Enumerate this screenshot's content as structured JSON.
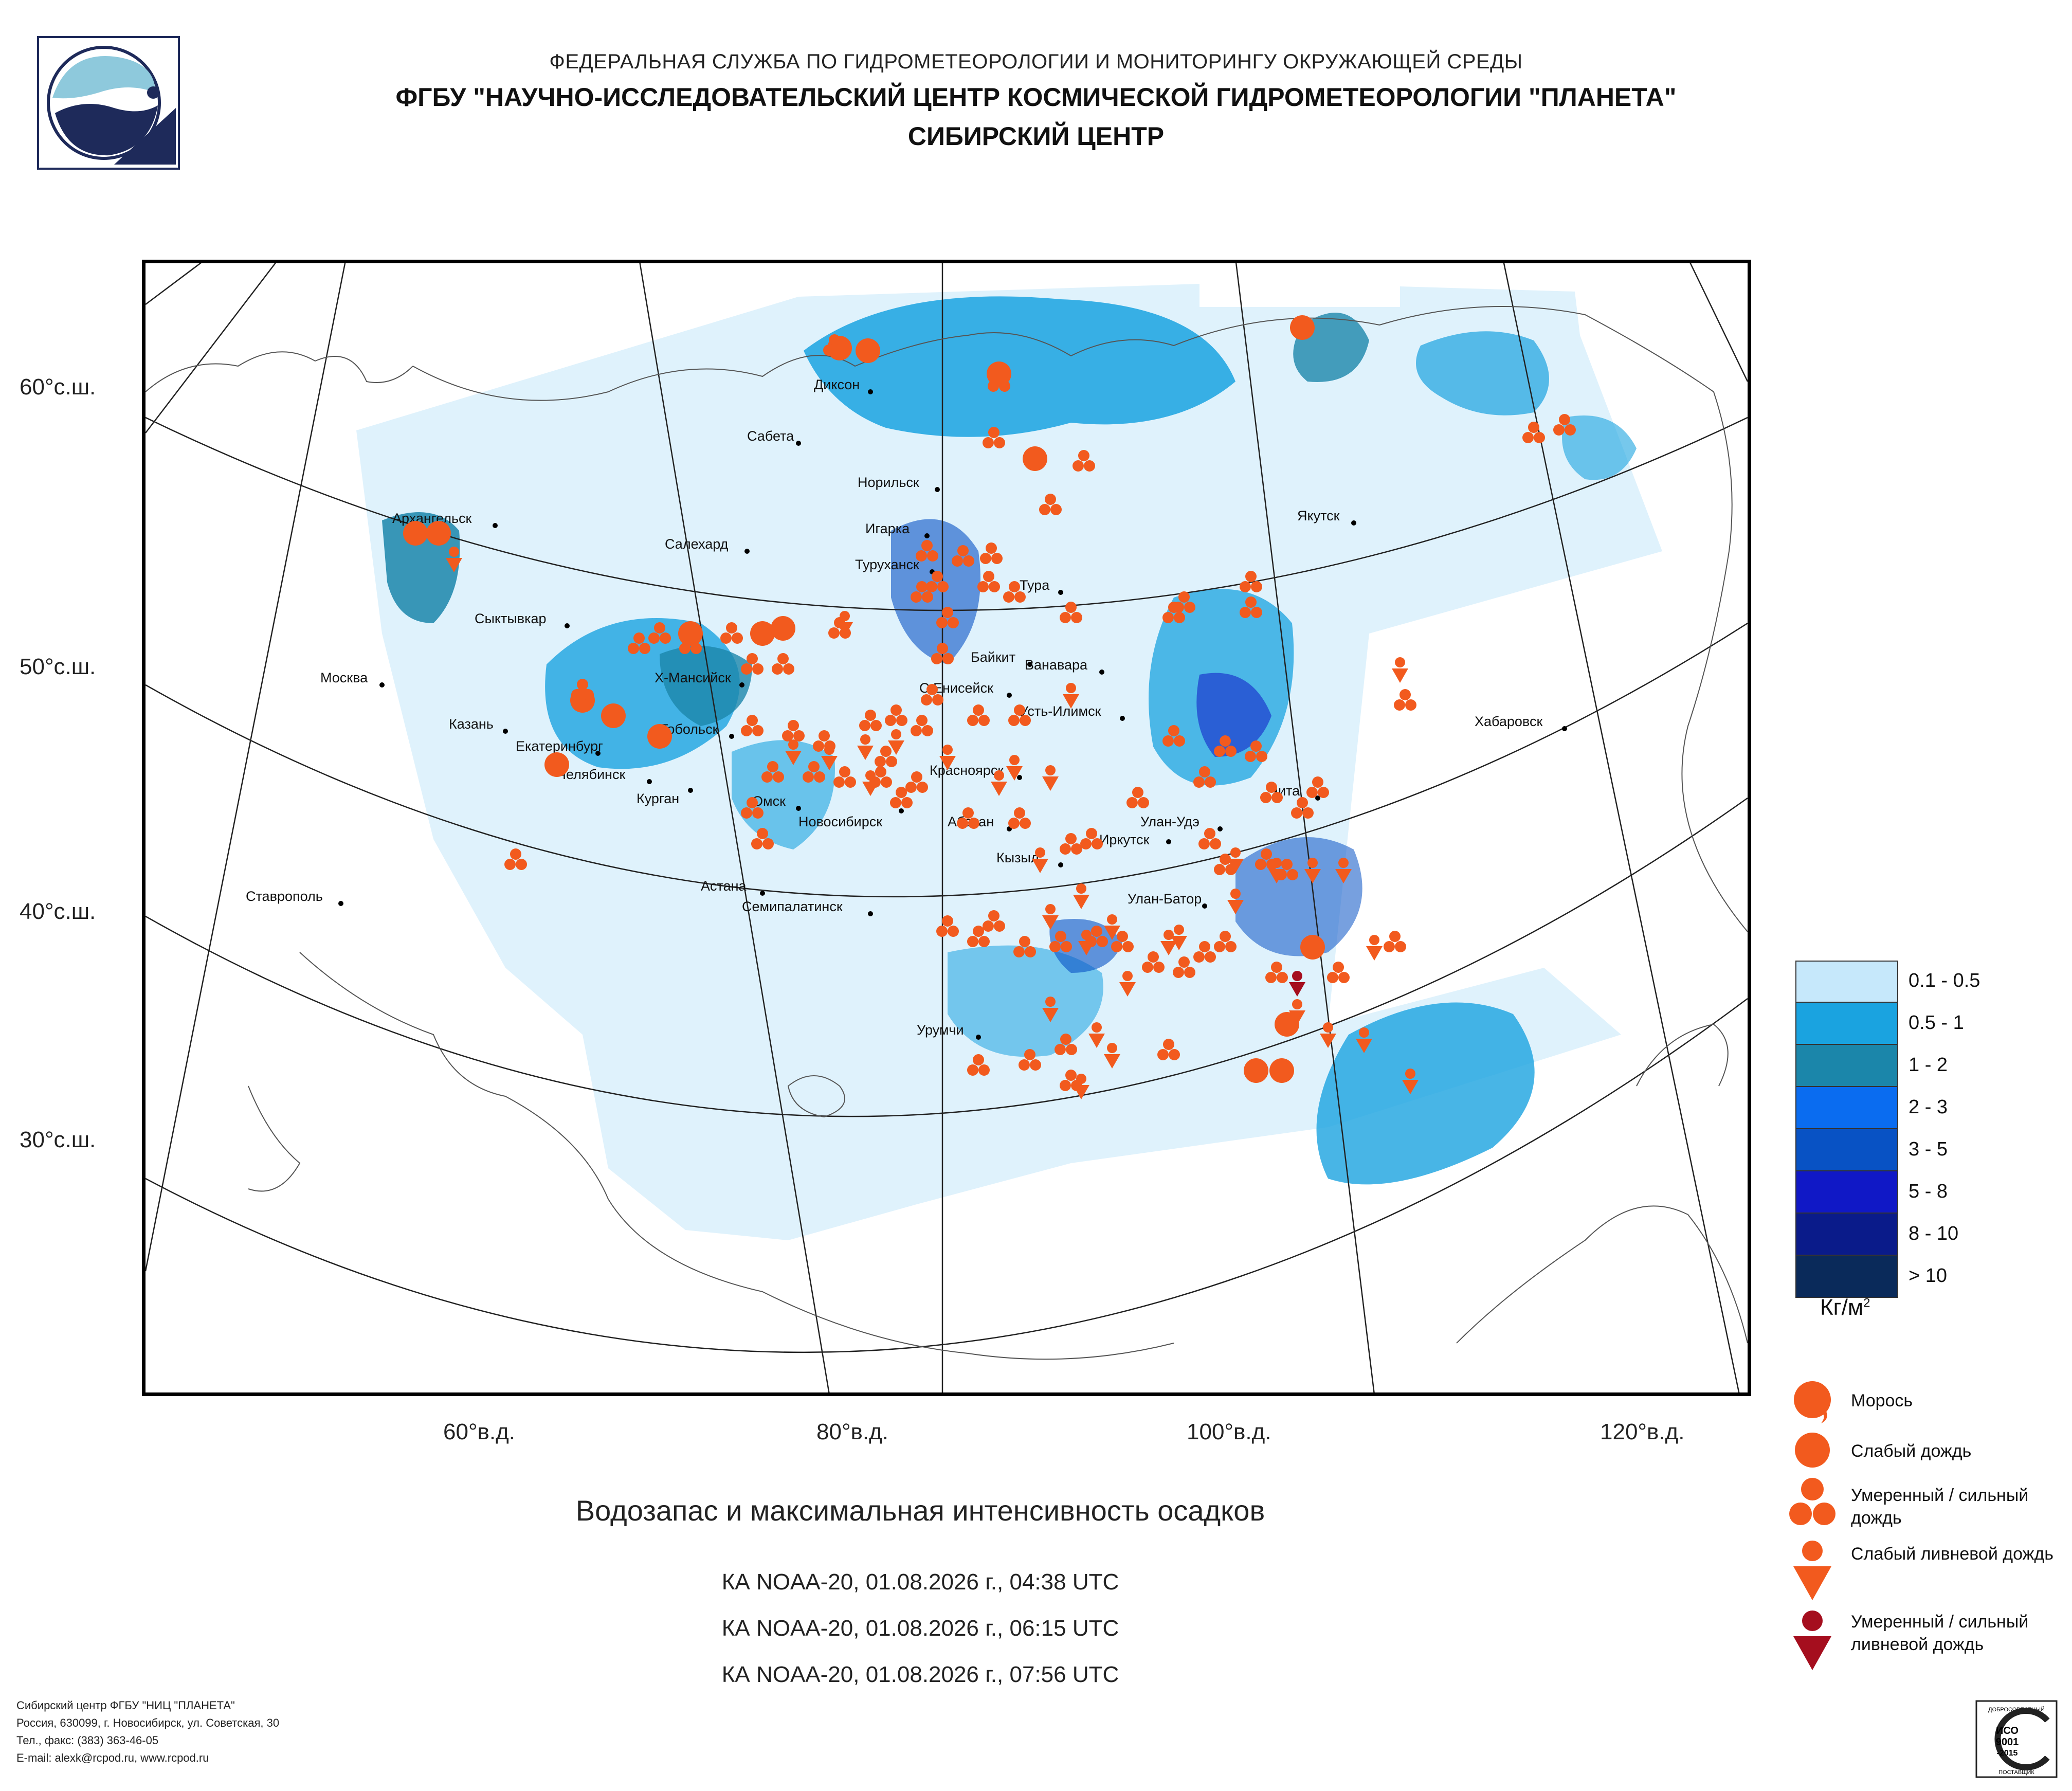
{
  "header": {
    "line1": "ФЕДЕРАЛЬНАЯ СЛУЖБА ПО ГИДРОМЕТЕОРОЛОГИИ И МОНИТОРИНГУ ОКРУЖАЮЩЕЙ СРЕДЫ",
    "line2": "ФГБУ \"НАУЧНО-ИССЛЕДОВАТЕЛЬСКИЙ ЦЕНТР КОСМИЧЕСКОЙ ГИДРОМЕТЕОРОЛОГИИ \"ПЛАНЕТА\"",
    "line3": "СИБИРСКИЙ ЦЕНТР"
  },
  "map": {
    "lat_labels": [
      "60°с.ш.",
      "50°с.ш.",
      "40°с.ш.",
      "30°с.ш."
    ],
    "lon_labels": [
      "60°в.д.",
      "80°в.д.",
      "100°в.д.",
      "120°в.д."
    ],
    "cities": [
      "Архангельск",
      "Сыктывкар",
      "Москва",
      "Казань",
      "Екатеринбург",
      "Челябинск",
      "Курган",
      "Тобольск",
      "Х-Мансийск",
      "Салехард",
      "Сабета",
      "Диксон",
      "Норильск",
      "Игарка",
      "Туруханск",
      "Тура",
      "Байкит",
      "Ванавара",
      "С.Енисейск",
      "Усть-Илимск",
      "Красноярск",
      "Омск",
      "Новосибирск",
      "Абакан",
      "Иркутск",
      "Улан-Удэ",
      "Чита",
      "Кызыл",
      "Улан-Батор",
      "Астана",
      "Семипалатинск",
      "Урумчи",
      "Ставрополь",
      "Якутск",
      "Хабаровск"
    ]
  },
  "legend": {
    "scale": [
      {
        "label": "0.1 - 0.5",
        "color": "#c6e8fb"
      },
      {
        "label": "0.5 - 1",
        "color": "#1aa3e0"
      },
      {
        "label": "1 - 2",
        "color": "#1b86aa"
      },
      {
        "label": "2 - 3",
        "color": "#0a6cf0"
      },
      {
        "label": "3 - 5",
        "color": "#0852c4"
      },
      {
        "label": "5 - 8",
        "color": "#1018c6"
      },
      {
        "label": "8 - 10",
        "color": "#0a1b8a"
      },
      {
        "label": "> 10",
        "color": "#0a2a5a"
      }
    ],
    "unit": "Кг/м",
    "unit_sup": "2",
    "symbols": [
      {
        "label": "Морось",
        "icon": "drizzle-icon"
      },
      {
        "label": "Слабый дождь",
        "icon": "light-rain-icon"
      },
      {
        "label": "Умеренный / сильный дождь",
        "icon": "moderate-rain-icon"
      },
      {
        "label": "Слабый ливневой дождь",
        "icon": "light-shower-icon"
      },
      {
        "label": "Умеренный / сильный ливневой дождь",
        "icon": "heavy-shower-icon"
      }
    ],
    "symbol_colors": {
      "orange": "#f25a1e",
      "darkred": "#a50e1e"
    }
  },
  "title": "Водозапас и максимальная интенсивность осадков",
  "passes": [
    "КА NOAA-20, 01.08.2026 г., 04:38 UTC",
    "КА NOAA-20, 01.08.2026 г., 06:15 UTC",
    "КА NOAA-20, 01.08.2026 г., 07:56 UTC"
  ],
  "footer": [
    "Сибирский центр ФГБУ \"НИЦ \"ПЛАНЕТА\"",
    "Россия, 630099, г. Новосибирск, ул. Советская, 30",
    "Тел., факс: (383) 363-46-05",
    "E-mail: alexk@rcpod.ru, www.rcpod.ru"
  ],
  "cert": {
    "top": "ДОБРОСОВЕСТНЫЙ",
    "line1": "ИСО",
    "line2": "9001",
    "line3": "-2015",
    "bottom": "ПОСТАВЩИК"
  }
}
